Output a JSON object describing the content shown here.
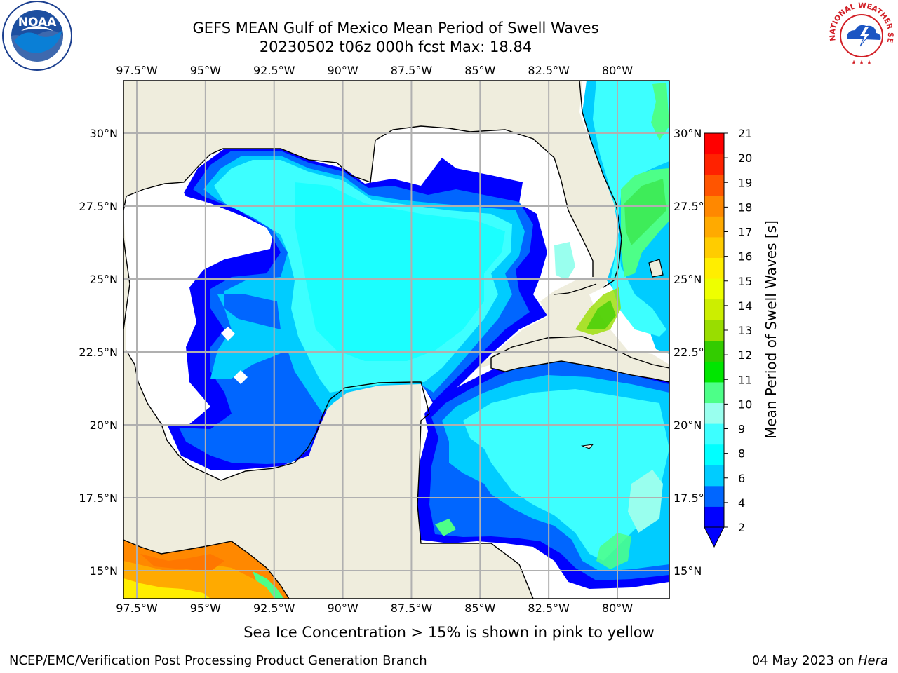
{
  "title": {
    "line1": "GEFS MEAN Gulf of Mexico Mean Period of Swell Waves",
    "line2": "20230502 t06z 000h fcst   Max: 18.84"
  },
  "map": {
    "lon_labels": [
      "97.5°W",
      "95°W",
      "92.5°W",
      "90°W",
      "87.5°W",
      "85°W",
      "82.5°W",
      "80°W"
    ],
    "lat_labels": [
      "30°N",
      "27.5°N",
      "25°N",
      "22.5°N",
      "20°N",
      "17.5°N",
      "15°N"
    ],
    "colors": {
      "land": "#efeddd",
      "ocean_no_data": "#ffffff",
      "grid": "#b0b0b0",
      "coast": "#000000"
    }
  },
  "colorbar": {
    "label": "Mean Period of Swell Waves [s]",
    "ticks": [
      "2",
      "4",
      "6",
      "8",
      "9",
      "10",
      "11",
      "12",
      "13",
      "14",
      "15",
      "16",
      "17",
      "18",
      "19",
      "20",
      "21"
    ],
    "colors": [
      "#0000ff",
      "#0066ff",
      "#00ccff",
      "#00ffff",
      "#3dffff",
      "#99ffee",
      "#4dff88",
      "#00e600",
      "#33cc00",
      "#99dd00",
      "#ccee00",
      "#eeff00",
      "#ffee00",
      "#ffcc00",
      "#ffaa00",
      "#ff8800",
      "#ff5500",
      "#ff2200",
      "#ff0000"
    ]
  },
  "caption": "Sea Ice Concentration > 15% is shown in pink to yellow",
  "footer": {
    "left": "NCEP/EMC/Verification Post Processing Product Generation Branch",
    "right_date": "04 May 2023 on ",
    "right_machine": "Hera"
  },
  "logos": {
    "noaa": "NOAA",
    "nws_text": "NATIONAL WEATHER SERVICE"
  }
}
